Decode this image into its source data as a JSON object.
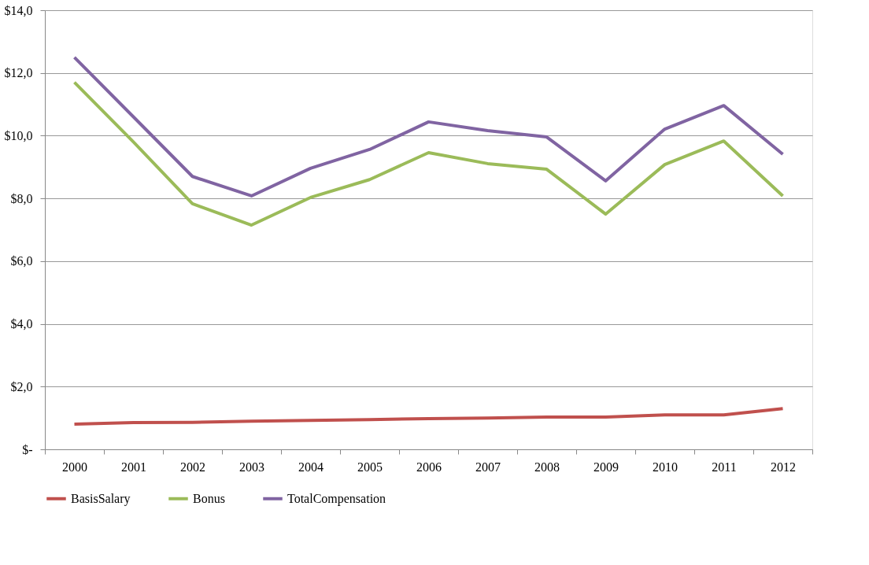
{
  "chart_data": {
    "type": "line",
    "categories": [
      "2000",
      "2001",
      "2002",
      "2003",
      "2004",
      "2005",
      "2006",
      "2007",
      "2008",
      "2009",
      "2010",
      "2011",
      "2012"
    ],
    "series": [
      {
        "name": "BasisSalary",
        "color": "#c0504d",
        "values": [
          0.8,
          0.85,
          0.86,
          0.9,
          0.92,
          0.95,
          0.98,
          1.0,
          1.03,
          1.03,
          1.1,
          1.1,
          1.3
        ]
      },
      {
        "name": "Bonus",
        "color": "#9bbb59",
        "values": [
          11.7,
          9.8,
          7.83,
          7.15,
          8.03,
          8.6,
          9.46,
          9.11,
          8.93,
          7.5,
          9.08,
          9.83,
          8.08
        ]
      },
      {
        "name": "TotalCompensation",
        "color": "#8064a2",
        "values": [
          12.5,
          10.6,
          8.7,
          8.08,
          8.96,
          9.56,
          10.44,
          10.16,
          9.96,
          8.56,
          10.21,
          10.96,
          9.41
        ]
      }
    ],
    "ylim": [
      0,
      14
    ],
    "yticks": [
      {
        "value": 0,
        "label": "$-"
      },
      {
        "value": 2,
        "label": "$2,0"
      },
      {
        "value": 4,
        "label": "$4,0"
      },
      {
        "value": 6,
        "label": "$6,0"
      },
      {
        "value": 8,
        "label": "$8,0"
      },
      {
        "value": 10,
        "label": "$10,0"
      },
      {
        "value": 12,
        "label": "$12,0"
      },
      {
        "value": 14,
        "label": "$14,0"
      }
    ],
    "grid": "y",
    "legend": "bottom",
    "marker": "none",
    "line_style": "solid"
  }
}
